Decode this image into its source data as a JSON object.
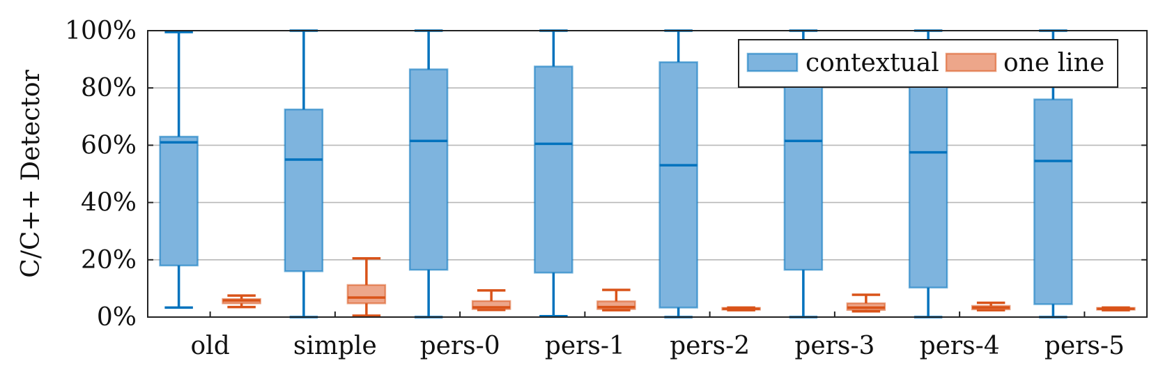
{
  "chart_data": {
    "type": "box",
    "ylabel": "C/C++ Detector",
    "xlabel": "",
    "title": "",
    "ylim": [
      0,
      100
    ],
    "yticks": [
      0,
      20,
      40,
      60,
      80,
      100
    ],
    "ytick_labels": [
      "0%",
      "20%",
      "40%",
      "60%",
      "80%",
      "100%"
    ],
    "grid": "horizontal",
    "legend_position": "top-right",
    "categories": [
      "old",
      "simple",
      "pers-0",
      "pers-1",
      "pers-2",
      "pers-3",
      "pers-4",
      "pers-5"
    ],
    "series": [
      {
        "name": "contextual",
        "color": "#0072BD",
        "fill": "#7EB4DE",
        "boxes": [
          {
            "min": 3.3,
            "q1": 18,
            "median": 61,
            "q3": 63,
            "max": 99.5
          },
          {
            "min": 0,
            "q1": 16,
            "median": 55,
            "q3": 72.5,
            "max": 100
          },
          {
            "min": 0,
            "q1": 16.5,
            "median": 61.5,
            "q3": 86.5,
            "max": 100
          },
          {
            "min": 0.3,
            "q1": 15.5,
            "median": 60.5,
            "q3": 87.5,
            "max": 100
          },
          {
            "min": 0,
            "q1": 3.3,
            "median": 53,
            "q3": 89,
            "max": 100
          },
          {
            "min": 0,
            "q1": 16.5,
            "median": 61.5,
            "q3": 93,
            "max": 100
          },
          {
            "min": 0,
            "q1": 10.3,
            "median": 57.5,
            "q3": 93,
            "max": 100
          },
          {
            "min": 0,
            "q1": 4.5,
            "median": 54.5,
            "q3": 76,
            "max": 100
          }
        ]
      },
      {
        "name": "one line",
        "color": "#D95319",
        "fill": "#EDA68A",
        "boxes": [
          {
            "min": 3.5,
            "q1": 4.8,
            "median": 5.8,
            "q3": 6.3,
            "max": 7.5
          },
          {
            "min": 0.5,
            "q1": 4.8,
            "median": 6.8,
            "q3": 11.2,
            "max": 20.5
          },
          {
            "min": 2.5,
            "q1": 2.8,
            "median": 3.4,
            "q3": 5.6,
            "max": 9.3
          },
          {
            "min": 2.4,
            "q1": 2.8,
            "median": 3.5,
            "q3": 5.5,
            "max": 9.5
          },
          {
            "min": 2.4,
            "q1": 2.6,
            "median": 2.9,
            "q3": 3.2,
            "max": 3.3
          },
          {
            "min": 2.0,
            "q1": 2.5,
            "median": 3.3,
            "q3": 4.8,
            "max": 7.8
          },
          {
            "min": 2.4,
            "q1": 2.7,
            "median": 3.3,
            "q3": 3.9,
            "max": 5.0
          },
          {
            "min": 2.4,
            "q1": 2.6,
            "median": 2.9,
            "q3": 3.2,
            "max": 3.3
          }
        ]
      }
    ]
  }
}
